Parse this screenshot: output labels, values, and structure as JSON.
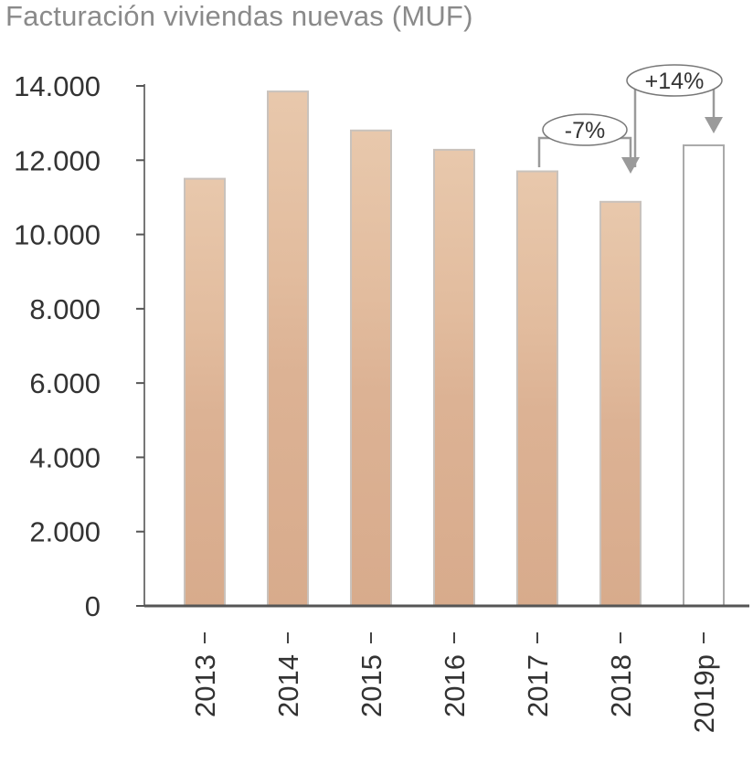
{
  "chart_data": {
    "type": "bar",
    "title": "Facturación viviendas nuevas (MUF)",
    "categories": [
      "2013",
      "2014",
      "2015",
      "2016",
      "2017",
      "2018",
      "2019p"
    ],
    "values": [
      11500,
      13850,
      12800,
      12280,
      11700,
      10880,
      12400
    ],
    "projected": [
      false,
      false,
      false,
      false,
      false,
      false,
      true
    ],
    "ylim": [
      0,
      14000
    ],
    "yticks": [
      0,
      2000,
      4000,
      6000,
      8000,
      10000,
      12000,
      14000
    ],
    "ytick_labels": [
      "0",
      "2.000",
      "4.000",
      "6.000",
      "8.000",
      "10.000",
      "12.000",
      "14.000"
    ],
    "xlabel": "",
    "ylabel": "",
    "grid": false,
    "annotations": [
      {
        "label": "-7%",
        "from": "2017",
        "to": "2018"
      },
      {
        "label": "+14%",
        "from": "2018",
        "to": "2019p"
      }
    ],
    "colors": {
      "bar": "#ddb497",
      "bar_edge": "#c9c2bc",
      "projected_fill": "#ffffff",
      "projected_edge": "#aaaaaa",
      "axis": "#555555",
      "arrow": "#9a9a9a",
      "title": "#8a8a8a"
    }
  }
}
